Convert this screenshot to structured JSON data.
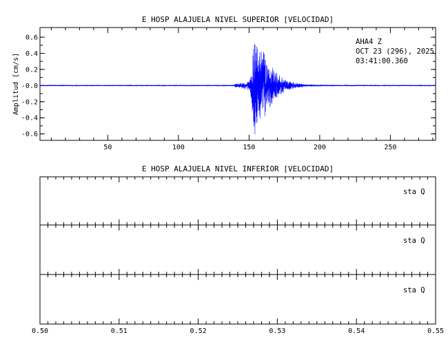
{
  "chart_data": [
    {
      "type": "line",
      "title": "E HOSP ALAJUELA NIVEL SUPERIOR [VELOCIDAD]",
      "xlabel": "",
      "ylabel": "Amplitud [cm/s]",
      "xlim": [
        2,
        282
      ],
      "ylim": [
        -0.68,
        0.72
      ],
      "x_ticks": [
        50,
        100,
        150,
        200,
        250
      ],
      "y_ticks": [
        -0.6,
        -0.4,
        -0.2,
        0.0,
        0.2,
        0.4,
        0.6
      ],
      "y_tick_labels": [
        "-0.6",
        "-0.4",
        "-0.2",
        "-0.0",
        "0.2",
        "0.4",
        "0.6"
      ],
      "line_color": "#0000ff",
      "annotations": [
        "AHA4   Z",
        "OCT 23 (296), 2025",
        "03:41:00.360"
      ],
      "series": [
        {
          "name": "",
          "envelope": {
            "x": [
              2,
              138,
              140,
              145,
              150,
              152,
              153,
              154,
              155,
              156,
              158,
              160,
              162,
              164,
              166,
              168,
              170,
              173,
              176,
              180,
              185,
              190,
              195,
              200,
              210,
              220,
              240,
              260,
              282
            ],
            "y": [
              0.003,
              0.003,
              0.02,
              0.03,
              0.05,
              0.2,
              0.55,
              0.66,
              0.5,
              0.45,
              0.42,
              0.38,
              0.3,
              0.25,
              0.22,
              0.17,
              0.13,
              0.09,
              0.06,
              0.04,
              0.025,
              0.015,
              0.01,
              0.008,
              0.006,
              0.005,
              0.004,
              0.003,
              0.003
            ]
          }
        }
      ]
    },
    {
      "type": "line",
      "title": "E HOSP ALAJUELA NIVEL INFERIOR [VELOCIDAD]",
      "xlim": [
        0.5,
        0.55
      ],
      "x_ticks": [
        0.5,
        0.51,
        0.52,
        0.53,
        0.54,
        0.55
      ],
      "x_tick_labels": [
        "0.50",
        "0.51",
        "0.52",
        "0.53",
        "0.54",
        "0.55"
      ],
      "panels": [
        {
          "label": "sta   Q"
        },
        {
          "label": "sta   Q"
        },
        {
          "label": "sta   Q"
        }
      ]
    }
  ]
}
